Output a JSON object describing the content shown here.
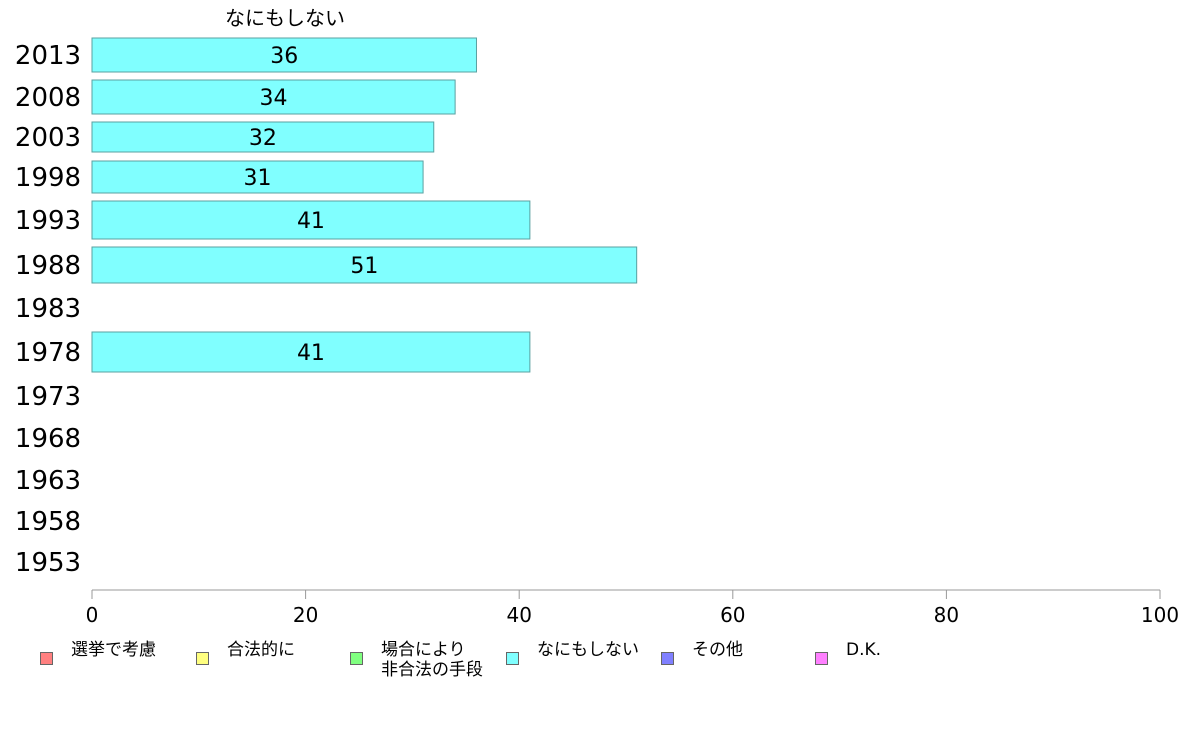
{
  "chart_data": {
    "type": "bar",
    "orientation": "horizontal",
    "title": "なにもしない",
    "categories": [
      "2013",
      "2008",
      "2003",
      "1998",
      "1993",
      "1988",
      "1983",
      "1978",
      "1973",
      "1968",
      "1963",
      "1958",
      "1953"
    ],
    "values": [
      36,
      34,
      32,
      31,
      41,
      51,
      null,
      41,
      null,
      null,
      null,
      null,
      null
    ],
    "xlim": [
      0,
      100
    ],
    "xticks": [
      0,
      20,
      40,
      60,
      80,
      100
    ],
    "bar_color": "#80ffff",
    "legend": [
      {
        "name": "選挙で考慮",
        "color": "#ff8080"
      },
      {
        "name": "合法的に",
        "color": "#ffff80"
      },
      {
        "name": "場合により\n非合法の手段",
        "color": "#80ff80"
      },
      {
        "name": "なにもしない",
        "color": "#80ffff"
      },
      {
        "name": "その他",
        "color": "#8080ff"
      },
      {
        "name": "D.K.",
        "color": "#ff80ff"
      }
    ],
    "legend_position": "bottom"
  }
}
